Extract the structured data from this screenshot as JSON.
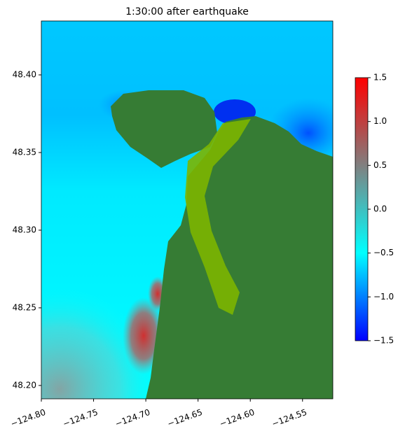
{
  "chart_data": {
    "type": "heatmap",
    "title": "1:30:00 after earthquake",
    "xlim": [
      -124.8,
      -124.521
    ],
    "ylim": [
      48.1914,
      48.4347
    ],
    "xticks": [
      {
        "value": -124.8,
        "label": "−124.80"
      },
      {
        "value": -124.75,
        "label": "−124.75"
      },
      {
        "value": -124.7,
        "label": "−124.70"
      },
      {
        "value": -124.65,
        "label": "−124.65"
      },
      {
        "value": -124.6,
        "label": "−124.60"
      },
      {
        "value": -124.55,
        "label": "−124.55"
      }
    ],
    "yticks": [
      {
        "value": 48.2,
        "label": "48.20"
      },
      {
        "value": 48.25,
        "label": "48.25"
      },
      {
        "value": 48.3,
        "label": "48.30"
      },
      {
        "value": 48.35,
        "label": "48.35"
      },
      {
        "value": 48.4,
        "label": "48.40"
      }
    ],
    "colorbar": {
      "lim": [
        -1.5,
        1.5
      ],
      "colors": [
        "#0000ff",
        "#00ffff",
        "#808080",
        "#ff0000"
      ],
      "ticks": [
        {
          "value": -1.5,
          "label": "−1.5"
        },
        {
          "value": -1.0,
          "label": "−1.0"
        },
        {
          "value": -0.5,
          "label": "−0.5"
        },
        {
          "value": 0.0,
          "label": "0.0"
        },
        {
          "value": 0.5,
          "label": "0.5"
        },
        {
          "value": 1.0,
          "label": "1.0"
        },
        {
          "value": 1.5,
          "label": "1.5"
        }
      ]
    }
  }
}
